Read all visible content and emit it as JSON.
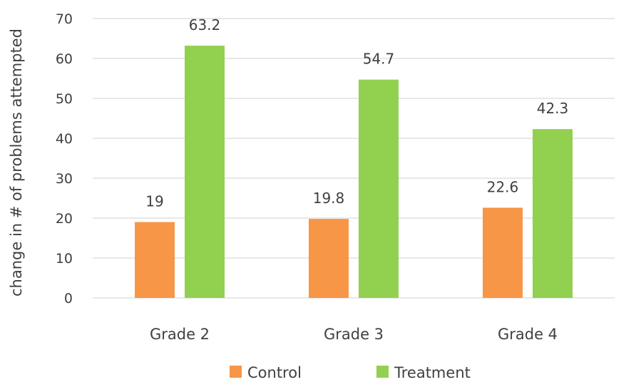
{
  "chart_data": {
    "type": "bar",
    "title": "",
    "xlabel": "",
    "ylabel": "change in # of problems attempted",
    "categories": [
      "Grade 2",
      "Grade 3",
      "Grade 4"
    ],
    "series": [
      {
        "name": "Control",
        "values": [
          19,
          19.8,
          22.6
        ],
        "labels": [
          "19",
          "19.8",
          "22.6"
        ],
        "color": "#f79646"
      },
      {
        "name": "Treatment",
        "values": [
          63.2,
          54.7,
          42.3
        ],
        "labels": [
          "63.2",
          "54.7",
          "42.3"
        ],
        "color": "#92d050"
      }
    ],
    "ylim": [
      0,
      70
    ],
    "yticks": [
      0,
      10,
      20,
      30,
      40,
      50,
      60,
      70
    ],
    "ytick_labels": [
      "0",
      "10",
      "20",
      "30",
      "40",
      "50",
      "60",
      "70"
    ],
    "grid": true,
    "legend_position": "bottom"
  }
}
